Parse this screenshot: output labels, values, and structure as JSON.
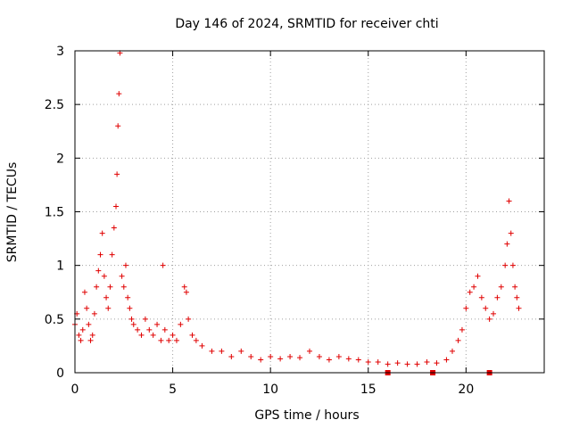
{
  "chart_data": {
    "type": "scatter",
    "title": "Day 146 of 2024, SRMTID for receiver chti",
    "xlabel": "GPS time / hours",
    "ylabel": "SRMTID / TECUs",
    "xlim": [
      0,
      24
    ],
    "ylim": [
      0,
      3
    ],
    "xticks": [
      0,
      5,
      10,
      15,
      20
    ],
    "yticks": [
      0,
      0.5,
      1,
      1.5,
      2,
      2.5,
      3
    ],
    "xtick_labels": [
      "0",
      "5",
      "10",
      "15",
      "20"
    ],
    "ytick_labels": [
      "0",
      "0.5",
      "1",
      "1.5",
      "2",
      "2.5",
      "3"
    ],
    "grid": true,
    "marker": "plus",
    "color": "#e00000",
    "series": [
      {
        "name": "SRMTID",
        "x": [
          0.0,
          0.1,
          0.2,
          0.3,
          0.4,
          0.5,
          0.6,
          0.7,
          0.8,
          0.9,
          1.0,
          1.1,
          1.2,
          1.3,
          1.4,
          1.5,
          1.6,
          1.7,
          1.8,
          1.9,
          2.0,
          2.1,
          2.15,
          2.2,
          2.25,
          2.3,
          2.4,
          2.5,
          2.6,
          2.7,
          2.8,
          2.9,
          3.0,
          3.2,
          3.4,
          3.6,
          3.8,
          4.0,
          4.2,
          4.4,
          4.5,
          4.6,
          4.8,
          5.0,
          5.2,
          5.4,
          5.6,
          5.7,
          5.8,
          6.0,
          6.2,
          6.5,
          7.0,
          7.5,
          8.0,
          8.5,
          9.0,
          9.5,
          10.0,
          10.5,
          11.0,
          11.5,
          12.0,
          12.5,
          13.0,
          13.5,
          14.0,
          14.5,
          15.0,
          15.5,
          16.0,
          16.5,
          17.0,
          17.5,
          18.0,
          18.5,
          19.0,
          19.3,
          19.6,
          19.8,
          20.0,
          20.2,
          20.4,
          20.6,
          20.8,
          21.0,
          21.2,
          21.4,
          21.6,
          21.8,
          22.0,
          22.1,
          22.2,
          22.3,
          22.4,
          22.5,
          22.6,
          22.7
        ],
        "y": [
          0.45,
          0.55,
          0.35,
          0.3,
          0.4,
          0.75,
          0.6,
          0.45,
          0.3,
          0.35,
          0.55,
          0.8,
          0.95,
          1.1,
          1.3,
          0.9,
          0.7,
          0.6,
          0.8,
          1.1,
          1.35,
          1.55,
          1.85,
          2.3,
          2.6,
          2.98,
          0.9,
          0.8,
          1.0,
          0.7,
          0.6,
          0.5,
          0.45,
          0.4,
          0.35,
          0.5,
          0.4,
          0.35,
          0.45,
          0.3,
          1.0,
          0.4,
          0.3,
          0.35,
          0.3,
          0.45,
          0.8,
          0.75,
          0.5,
          0.35,
          0.3,
          0.25,
          0.2,
          0.2,
          0.15,
          0.2,
          0.15,
          0.12,
          0.15,
          0.13,
          0.15,
          0.14,
          0.2,
          0.15,
          0.12,
          0.15,
          0.13,
          0.12,
          0.1,
          0.1,
          0.08,
          0.09,
          0.08,
          0.08,
          0.1,
          0.09,
          0.12,
          0.2,
          0.3,
          0.4,
          0.6,
          0.75,
          0.8,
          0.9,
          0.7,
          0.6,
          0.5,
          0.55,
          0.7,
          0.8,
          1.0,
          1.2,
          1.6,
          1.3,
          1.0,
          0.8,
          0.7,
          0.6
        ]
      }
    ],
    "box_markers": {
      "x": [
        16.0,
        18.3,
        21.2
      ],
      "y": [
        0,
        0,
        0
      ]
    }
  }
}
